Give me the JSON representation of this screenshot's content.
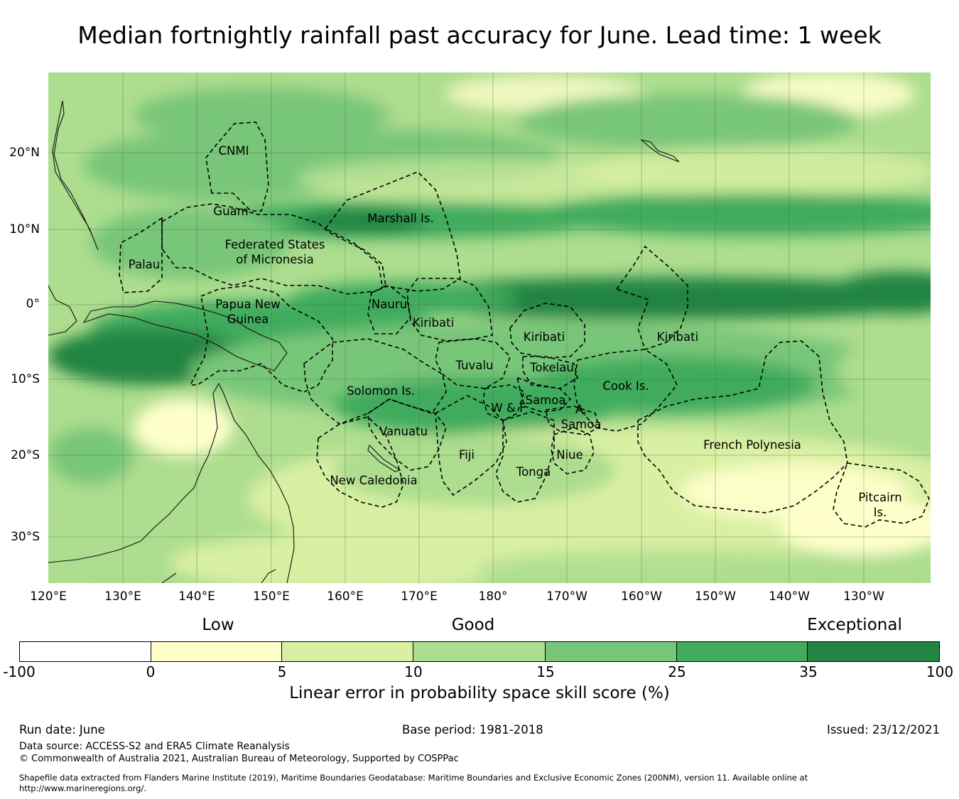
{
  "title": "Median fortnightly rainfall past accuracy for June. Lead time: 1 week",
  "map": {
    "lat_labels": [
      "20°N",
      "10°N",
      "0°",
      "10°S",
      "20°S",
      "30°S"
    ],
    "lon_labels": [
      "120°E",
      "130°E",
      "140°E",
      "150°E",
      "160°E",
      "170°E",
      "180°",
      "170°W",
      "160°W",
      "150°W",
      "140°W",
      "130°W"
    ],
    "region_labels": [
      "CNMI",
      "Guam",
      "Marshall Is.",
      "Federated States\nof Micronesia",
      "Palau",
      "Papua New\nGuinea",
      "Nauru",
      "Kiribati",
      "Kiribati",
      "Kiribati",
      "Tuvalu",
      "Tokelau",
      "Cook Is.",
      "Solomon Is.",
      "Samoa",
      "W & F",
      "A.\nSamoa",
      "Vanuatu",
      "Fiji",
      "Niue",
      "Tonga",
      "French Polynesia",
      "New Caledonia",
      "Pitcairn\nIs."
    ],
    "field_description_colors": {
      "band_strong": "#238443",
      "moderate": "#41ab5d",
      "good": "#78c679",
      "fair": "#addd8e",
      "low": "#d9f0a3",
      "very_low": "#ffffcc"
    }
  },
  "legend": {
    "categories": [
      "Low",
      "Good",
      "Exceptional"
    ],
    "ticks": [
      "-100",
      "0",
      "5",
      "10",
      "15",
      "25",
      "35",
      "100"
    ],
    "colors": [
      "#ffffff",
      "#ffffcc",
      "#d9f0a3",
      "#addd8e",
      "#78c679",
      "#41ab5d",
      "#238443"
    ],
    "label": "Linear error in probability space skill score (%)"
  },
  "footer": {
    "run_date": "Run date: June",
    "base_period": "Base period: 1981-2018",
    "issued": "Issued: 23/12/2021",
    "data_source": "Data source: ACCESS-S2 and ERA5 Climate Reanalysis",
    "copyright": "© Commonwealth of Australia 2021, Australian Bureau of Meteorology, Supported by COSPPac",
    "shapefile_1": "Shapefile data extracted from Flanders Marine Institute (2019), Maritime Boundaries Geodatabase: Maritime Boundaries and Exclusive Economic Zones (200NM), version 11. Available online at",
    "shapefile_2": "http://www.marineregions.org/."
  }
}
